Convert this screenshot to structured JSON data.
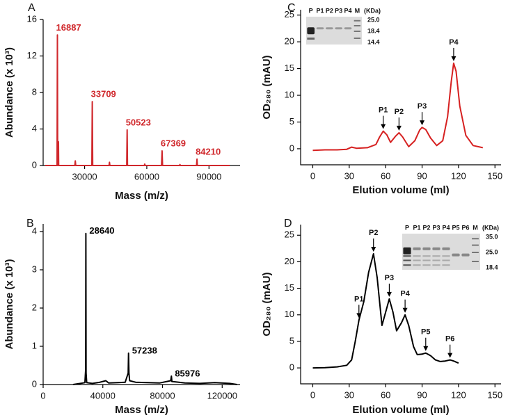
{
  "chart_data": [
    {
      "type": "line",
      "panel": "A",
      "xlabel": "Mass (m/z)",
      "ylabel": "Abundance (x 10³)",
      "color": "#d0282c",
      "x": [
        11000,
        16700,
        16887,
        17000,
        17300,
        17400,
        17500,
        25300,
        25500,
        25700,
        33500,
        33709,
        33900,
        41800,
        42000,
        42200,
        50300,
        50523,
        50700,
        58800,
        59000,
        59200,
        67100,
        67369,
        67600,
        75800,
        76000,
        76200,
        84000,
        84210,
        84400,
        100000
      ],
      "values": [
        0,
        0,
        14.3,
        0,
        0,
        2.6,
        0,
        0,
        0.5,
        0,
        0,
        7,
        0,
        0,
        0.35,
        0,
        0,
        3.9,
        0,
        0,
        0.15,
        0,
        0,
        1.6,
        0,
        0,
        0.1,
        0,
        0,
        0.7,
        0,
        0
      ],
      "peak_labels": [
        {
          "x": 16887,
          "y": 14.3
        },
        {
          "x": 33709,
          "y": 7
        },
        {
          "x": 50523,
          "y": 3.9
        },
        {
          "x": 67369,
          "y": 1.6
        },
        {
          "x": 84210,
          "y": 0.7
        }
      ],
      "xlim": [
        10000,
        105000
      ],
      "ylim": [
        0,
        16
      ],
      "xticks": [
        30000,
        60000,
        90000
      ],
      "yticks": [
        0,
        4,
        8,
        12,
        16
      ]
    },
    {
      "type": "line",
      "panel": "B",
      "xlabel": "Mass (m/z)",
      "ylabel": "Abundance (x 10³)",
      "color": "#000000",
      "x": [
        20000,
        25000,
        28000,
        28500,
        28640,
        28800,
        29200,
        33000,
        38000,
        42000,
        44000,
        50000,
        55000,
        57000,
        57238,
        57500,
        58000,
        62000,
        70000,
        78000,
        85500,
        85976,
        86300,
        95000,
        105000,
        115000,
        125000,
        130000
      ],
      "values": [
        0,
        0.03,
        0.05,
        0.4,
        3.95,
        0.3,
        0.05,
        0.03,
        0.06,
        0.1,
        0.04,
        0.05,
        0.06,
        0.3,
        0.82,
        0.3,
        0.1,
        0.06,
        0.05,
        0.04,
        0.1,
        0.22,
        0.08,
        0.04,
        0.03,
        0.05,
        0.03,
        0
      ],
      "peak_labels": [
        {
          "x": 28640,
          "y": 3.95
        },
        {
          "x": 57238,
          "y": 0.82
        },
        {
          "x": 85976,
          "y": 0.22
        }
      ],
      "xlim": [
        0,
        132000
      ],
      "ylim": [
        0,
        4.2
      ],
      "xticks": [
        0,
        40000,
        80000,
        120000
      ],
      "yticks": [
        0,
        1,
        2,
        3,
        4
      ]
    },
    {
      "type": "line",
      "panel": "C",
      "xlabel": "Elution volume (ml)",
      "ylabel": "OD₂₈₀ (mAU)",
      "color": "#d62020",
      "x": [
        0,
        10,
        20,
        28,
        32,
        36,
        45,
        52,
        55,
        58,
        61,
        64,
        68,
        71,
        74,
        79,
        84,
        88,
        90,
        93,
        97,
        102,
        107,
        111,
        114,
        116,
        118,
        121,
        126,
        132,
        140
      ],
      "values": [
        -0.3,
        -0.2,
        -0.2,
        -0.1,
        0.3,
        0.1,
        0.2,
        0.8,
        2.2,
        3.3,
        2.6,
        1.2,
        2.3,
        3.0,
        2.2,
        0.4,
        1.5,
        3.5,
        4.0,
        3.6,
        2.0,
        0.6,
        1.5,
        6.0,
        12.5,
        16.0,
        14.5,
        8.0,
        2.5,
        0.6,
        0.2
      ],
      "annotations": [
        {
          "text": "P1",
          "x": 58,
          "y": 3.3
        },
        {
          "text": "P2",
          "x": 71,
          "y": 3.0
        },
        {
          "text": "P3",
          "x": 90,
          "y": 4.0
        },
        {
          "text": "P4",
          "x": 116,
          "y": 16.0
        }
      ],
      "inset": {
        "lanes": [
          "P",
          "P1",
          "P2",
          "P3",
          "P4",
          "M"
        ],
        "unit": "(KDa)",
        "markers": [
          "25.0",
          "18.4",
          "14.4"
        ]
      },
      "xlim": [
        -10,
        155
      ],
      "ylim": [
        -3,
        26
      ],
      "xticks": [
        0,
        30,
        60,
        90,
        120,
        150
      ],
      "yticks": [
        0,
        5,
        10,
        15,
        20,
        25
      ]
    },
    {
      "type": "line",
      "panel": "D",
      "xlabel": "Elution volume (ml)",
      "ylabel": "OD₂₈₀ (mAU)",
      "color": "#000000",
      "x": [
        0,
        10,
        20,
        28,
        32,
        35,
        38,
        42,
        46,
        50,
        53,
        57,
        60,
        63,
        66,
        69,
        73,
        76,
        79,
        83,
        86,
        90,
        93,
        97,
        101,
        105,
        109,
        113,
        116,
        120
      ],
      "values": [
        0,
        0.05,
        0.2,
        0.5,
        1.5,
        5.0,
        9.0,
        12.5,
        18.0,
        21.5,
        17.0,
        8.0,
        10.5,
        13.0,
        10.5,
        7.0,
        8.5,
        10.0,
        8.0,
        4.0,
        2.5,
        2.6,
        2.8,
        2.3,
        1.5,
        1.2,
        1.3,
        1.5,
        1.3,
        0.9
      ],
      "annotations": [
        {
          "text": "P1",
          "x": 38,
          "y": 9.0
        },
        {
          "text": "P2",
          "x": 50,
          "y": 21.5
        },
        {
          "text": "P3",
          "x": 63,
          "y": 13.0
        },
        {
          "text": "P4",
          "x": 76,
          "y": 10.0
        },
        {
          "text": "P5",
          "x": 93,
          "y": 2.8
        },
        {
          "text": "P6",
          "x": 113,
          "y": 1.5
        }
      ],
      "inset": {
        "lanes": [
          "P",
          "P1",
          "P2",
          "P3",
          "P4",
          "P5",
          "P6",
          "M"
        ],
        "unit": "(KDa)",
        "markers": [
          "35.0",
          "25.0",
          "18.4"
        ]
      },
      "xlim": [
        -10,
        155
      ],
      "ylim": [
        -3,
        27
      ],
      "xticks": [
        0,
        30,
        60,
        90,
        120,
        150
      ],
      "yticks": [
        0,
        5,
        10,
        15,
        20,
        25
      ]
    }
  ]
}
